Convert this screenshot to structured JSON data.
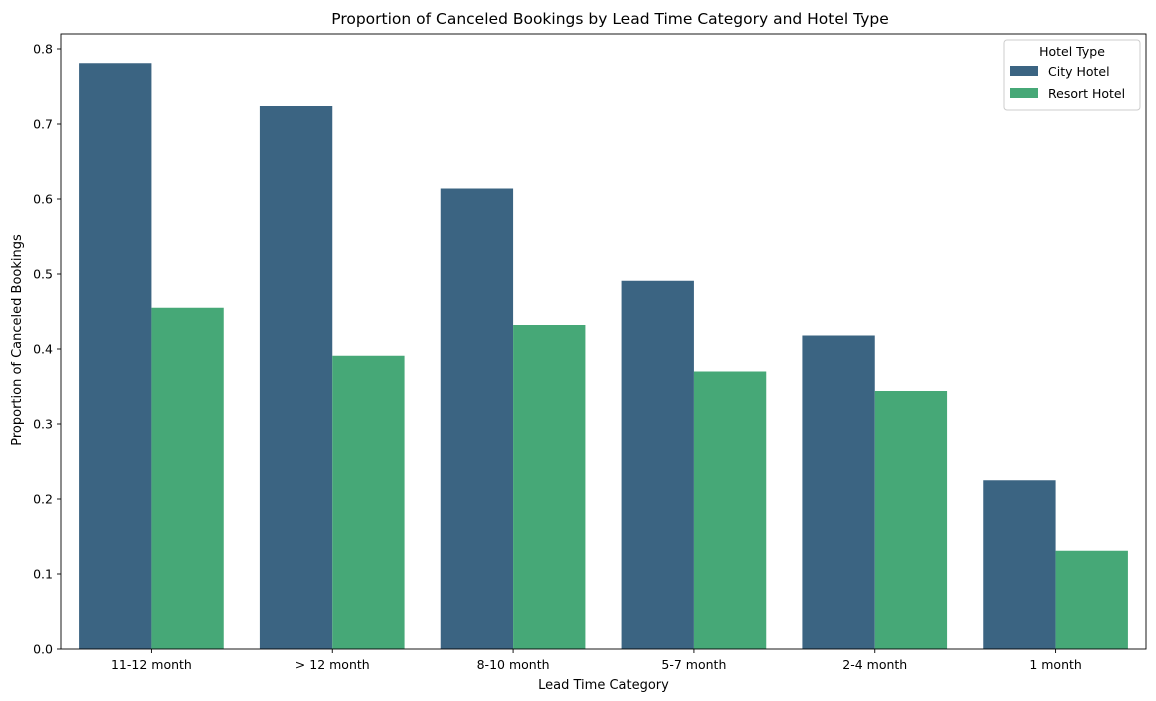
{
  "chart_data": {
    "type": "bar",
    "title": "Proportion of Canceled Bookings by Lead Time Category and Hotel Type",
    "xlabel": "Lead Time Category",
    "ylabel": "Proportion of Canceled Bookings",
    "categories": [
      "11-12 month",
      "> 12 month",
      "8-10 month",
      "5-7 month",
      "2-4 month",
      "1 month"
    ],
    "series": [
      {
        "name": "City Hotel",
        "color": "#3b6482",
        "values": [
          0.781,
          0.724,
          0.614,
          0.491,
          0.418,
          0.225
        ]
      },
      {
        "name": "Resort Hotel",
        "color": "#46a877",
        "values": [
          0.455,
          0.391,
          0.432,
          0.37,
          0.344,
          0.131
        ]
      }
    ],
    "ylim": [
      0,
      0.82
    ],
    "yticks": [
      0.0,
      0.1,
      0.2,
      0.3,
      0.4,
      0.5,
      0.6,
      0.7,
      0.8
    ],
    "ytick_labels": [
      "0.0",
      "0.1",
      "0.2",
      "0.3",
      "0.4",
      "0.5",
      "0.6",
      "0.7",
      "0.8"
    ],
    "grid": false,
    "legend": {
      "title": "Hotel Type",
      "placement": "top-right"
    }
  }
}
